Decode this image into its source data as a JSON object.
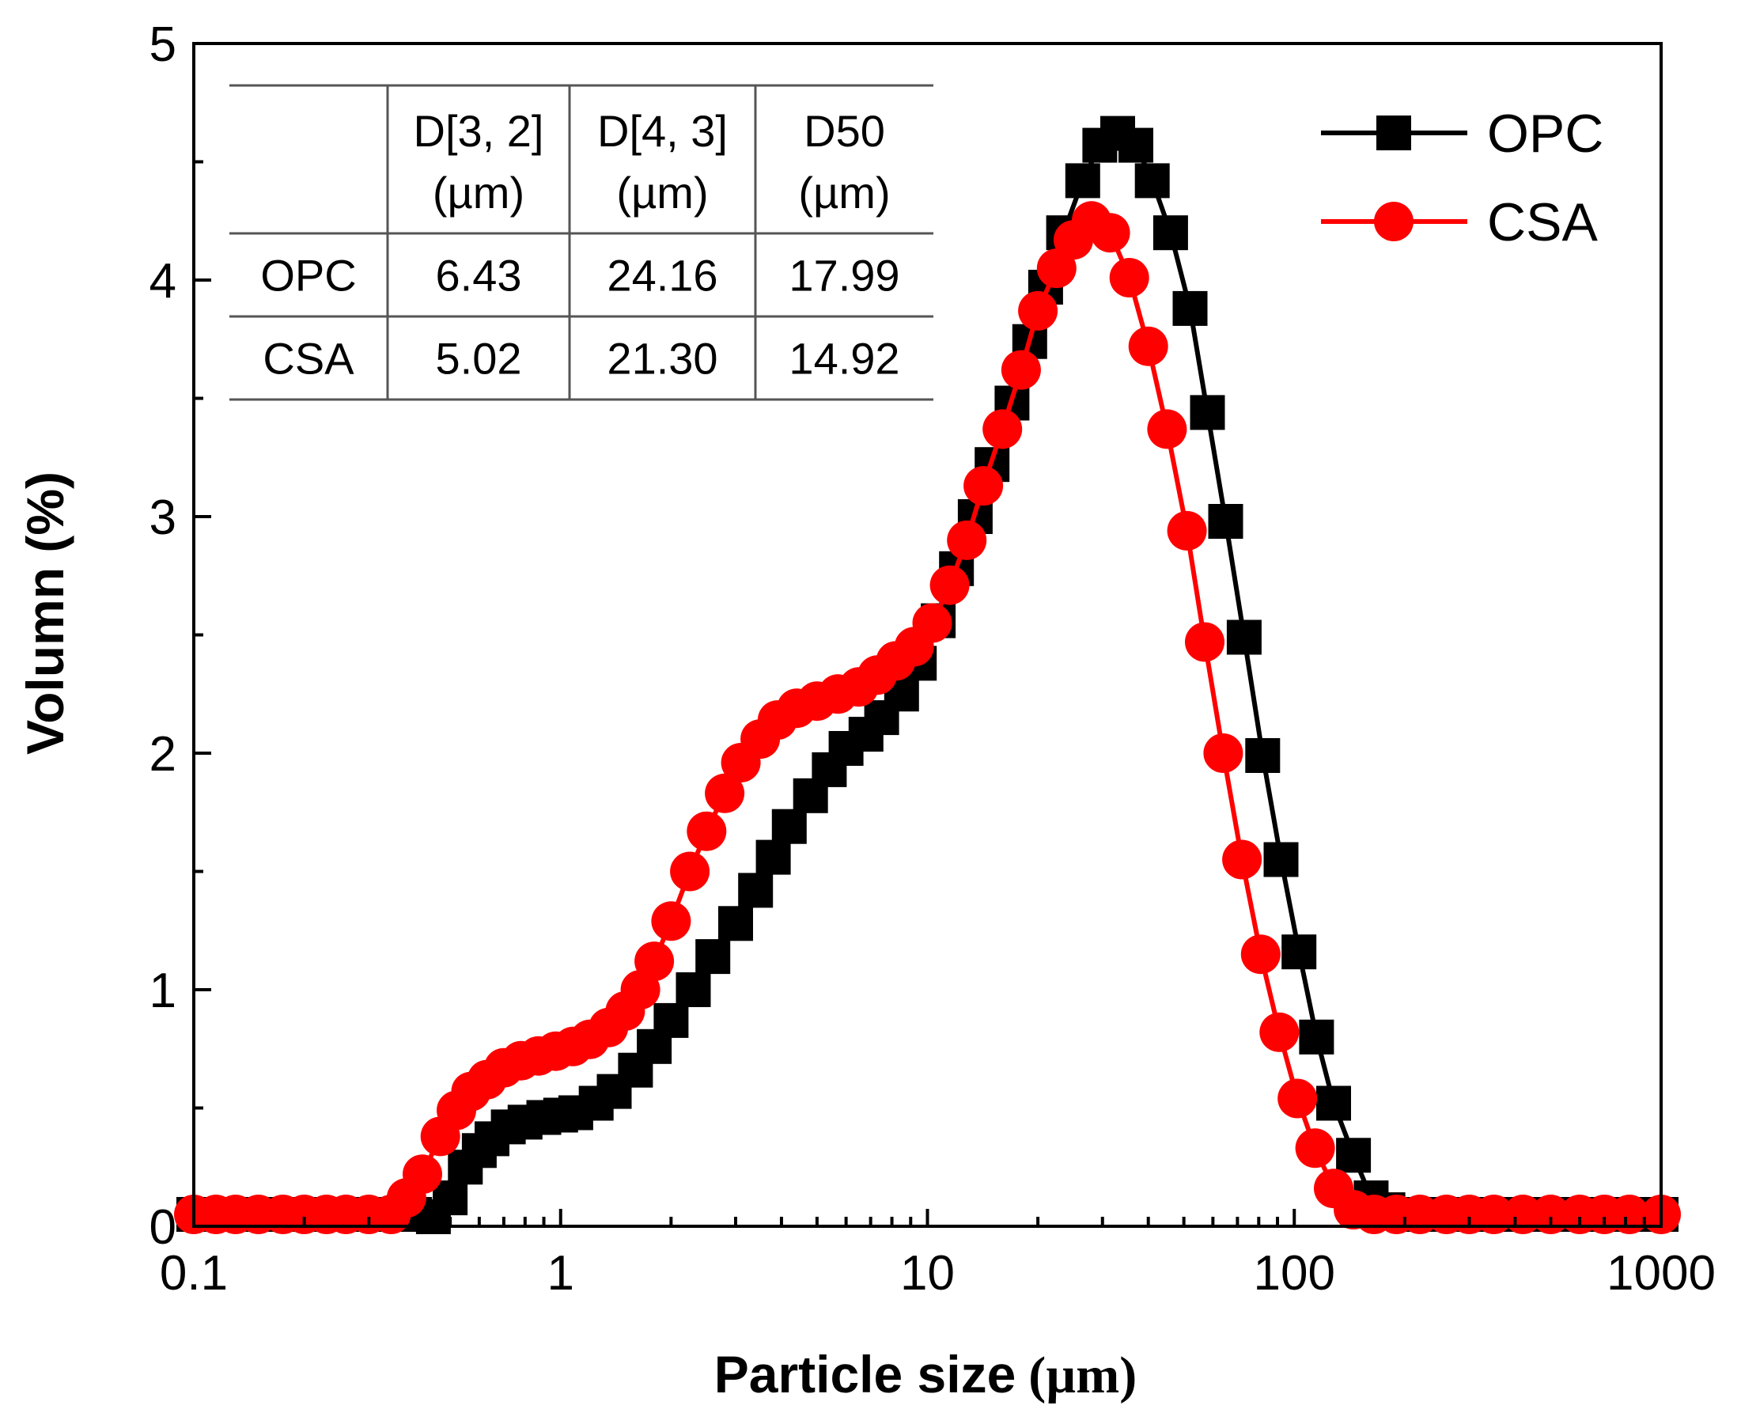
{
  "chart_data": {
    "type": "line",
    "title": "",
    "xlabel_bold": "Particle size",
    "xlabel_unit": "(µm)",
    "ylabel": "Volumn (%)",
    "xscale": "log",
    "xlim": [
      0.1,
      1000
    ],
    "ylim": [
      0,
      5
    ],
    "x_ticks": [
      0.1,
      1,
      10,
      100,
      1000
    ],
    "x_tick_labels": [
      "0.1",
      "1",
      "10",
      "100",
      "1000"
    ],
    "y_ticks": [
      0,
      1,
      2,
      3,
      4,
      5
    ],
    "y_tick_labels": [
      "0",
      "1",
      "2",
      "3",
      "4",
      "5"
    ],
    "legend_position": "top-right",
    "series": [
      {
        "name": "OPC",
        "color": "#000000",
        "marker": "square",
        "points": [
          [
            0.1,
            0.05
          ],
          [
            0.115,
            0.05
          ],
          [
            0.13,
            0.05
          ],
          [
            0.15,
            0.05
          ],
          [
            0.175,
            0.05
          ],
          [
            0.2,
            0.05
          ],
          [
            0.23,
            0.05
          ],
          [
            0.26,
            0.05
          ],
          [
            0.3,
            0.05
          ],
          [
            0.345,
            0.05
          ],
          [
            0.4,
            0.05
          ],
          [
            0.45,
            0.04
          ],
          [
            0.5,
            0.12
          ],
          [
            0.55,
            0.25
          ],
          [
            0.6,
            0.32
          ],
          [
            0.65,
            0.37
          ],
          [
            0.72,
            0.42
          ],
          [
            0.8,
            0.44
          ],
          [
            0.9,
            0.46
          ],
          [
            1.0,
            0.47
          ],
          [
            1.1,
            0.48
          ],
          [
            1.25,
            0.52
          ],
          [
            1.4,
            0.57
          ],
          [
            1.6,
            0.66
          ],
          [
            1.8,
            0.76
          ],
          [
            2.0,
            0.87
          ],
          [
            2.3,
            1.0
          ],
          [
            2.6,
            1.14
          ],
          [
            3.0,
            1.28
          ],
          [
            3.4,
            1.42
          ],
          [
            3.8,
            1.56
          ],
          [
            4.2,
            1.69
          ],
          [
            4.8,
            1.82
          ],
          [
            5.4,
            1.93
          ],
          [
            6.0,
            2.02
          ],
          [
            6.8,
            2.08
          ],
          [
            7.5,
            2.15
          ],
          [
            8.5,
            2.25
          ],
          [
            9.5,
            2.38
          ],
          [
            10.7,
            2.56
          ],
          [
            12.0,
            2.78
          ],
          [
            13.5,
            3.0
          ],
          [
            15.0,
            3.22
          ],
          [
            17.0,
            3.48
          ],
          [
            19.0,
            3.74
          ],
          [
            21.0,
            3.97
          ],
          [
            23.5,
            4.2
          ],
          [
            26.5,
            4.42
          ],
          [
            29.5,
            4.57
          ],
          [
            33.0,
            4.62
          ],
          [
            37.0,
            4.57
          ],
          [
            41.0,
            4.42
          ],
          [
            46.0,
            4.2
          ],
          [
            52.0,
            3.88
          ],
          [
            58.0,
            3.44
          ],
          [
            65.0,
            2.98
          ],
          [
            73.0,
            2.49
          ],
          [
            82.0,
            1.99
          ],
          [
            92.0,
            1.55
          ],
          [
            103.0,
            1.16
          ],
          [
            115.0,
            0.8
          ],
          [
            128.0,
            0.52
          ],
          [
            145.0,
            0.3
          ],
          [
            162.0,
            0.12
          ],
          [
            180.0,
            0.07
          ],
          [
            210.0,
            0.05
          ],
          [
            250.0,
            0.05
          ],
          [
            300.0,
            0.05
          ],
          [
            350.0,
            0.05
          ],
          [
            420.0,
            0.05
          ],
          [
            500.0,
            0.05
          ],
          [
            600.0,
            0.05
          ],
          [
            700.0,
            0.05
          ],
          [
            820.0,
            0.05
          ],
          [
            1000.0,
            0.05
          ]
        ]
      },
      {
        "name": "CSA",
        "color": "#ff0000",
        "marker": "circle",
        "points": [
          [
            0.1,
            0.05
          ],
          [
            0.115,
            0.05
          ],
          [
            0.13,
            0.05
          ],
          [
            0.15,
            0.05
          ],
          [
            0.175,
            0.05
          ],
          [
            0.2,
            0.05
          ],
          [
            0.23,
            0.05
          ],
          [
            0.26,
            0.05
          ],
          [
            0.3,
            0.05
          ],
          [
            0.345,
            0.05
          ],
          [
            0.38,
            0.12
          ],
          [
            0.42,
            0.22
          ],
          [
            0.47,
            0.38
          ],
          [
            0.52,
            0.49
          ],
          [
            0.57,
            0.57
          ],
          [
            0.63,
            0.62
          ],
          [
            0.7,
            0.67
          ],
          [
            0.78,
            0.7
          ],
          [
            0.87,
            0.72
          ],
          [
            0.97,
            0.74
          ],
          [
            1.08,
            0.76
          ],
          [
            1.2,
            0.79
          ],
          [
            1.35,
            0.84
          ],
          [
            1.5,
            0.91
          ],
          [
            1.65,
            1.0
          ],
          [
            1.8,
            1.12
          ],
          [
            2.0,
            1.29
          ],
          [
            2.25,
            1.5
          ],
          [
            2.5,
            1.67
          ],
          [
            2.8,
            1.83
          ],
          [
            3.1,
            1.96
          ],
          [
            3.5,
            2.06
          ],
          [
            3.9,
            2.14
          ],
          [
            4.4,
            2.19
          ],
          [
            5.0,
            2.22
          ],
          [
            5.7,
            2.25
          ],
          [
            6.5,
            2.28
          ],
          [
            7.3,
            2.33
          ],
          [
            8.2,
            2.39
          ],
          [
            9.2,
            2.45
          ],
          [
            10.3,
            2.55
          ],
          [
            11.5,
            2.71
          ],
          [
            12.8,
            2.9
          ],
          [
            14.2,
            3.13
          ],
          [
            16.0,
            3.37
          ],
          [
            18.0,
            3.62
          ],
          [
            20.0,
            3.87
          ],
          [
            22.5,
            4.05
          ],
          [
            25.0,
            4.17
          ],
          [
            28.0,
            4.25
          ],
          [
            31.5,
            4.2
          ],
          [
            35.5,
            4.01
          ],
          [
            40.0,
            3.72
          ],
          [
            45.0,
            3.37
          ],
          [
            51.0,
            2.94
          ],
          [
            57.0,
            2.47
          ],
          [
            64.0,
            2.0
          ],
          [
            72.0,
            1.55
          ],
          [
            81.0,
            1.15
          ],
          [
            91.0,
            0.82
          ],
          [
            102.0,
            0.54
          ],
          [
            114.0,
            0.33
          ],
          [
            128.0,
            0.16
          ],
          [
            145.0,
            0.07
          ],
          [
            165.0,
            0.05
          ],
          [
            190.0,
            0.05
          ],
          [
            220.0,
            0.05
          ],
          [
            260.0,
            0.05
          ],
          [
            300.0,
            0.05
          ],
          [
            350.0,
            0.05
          ],
          [
            420.0,
            0.05
          ],
          [
            500.0,
            0.05
          ],
          [
            600.0,
            0.05
          ],
          [
            700.0,
            0.05
          ],
          [
            820.0,
            0.05
          ],
          [
            1000.0,
            0.05
          ]
        ]
      }
    ],
    "table": {
      "columns": [
        [
          "",
          ""
        ],
        [
          "D[3, 2]",
          "(µm)"
        ],
        [
          "D[4, 3]",
          "(µm)"
        ],
        [
          "D50",
          "(µm)"
        ]
      ],
      "rows": [
        [
          "OPC",
          "6.43",
          "24.16",
          "17.99"
        ],
        [
          "CSA",
          "5.02",
          "21.30",
          "14.92"
        ]
      ]
    }
  }
}
